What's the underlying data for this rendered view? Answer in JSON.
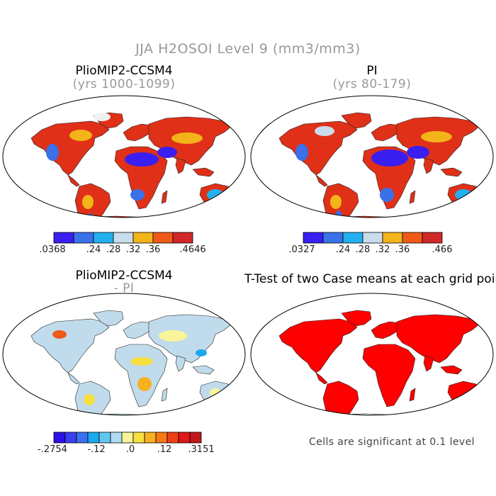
{
  "main_title": "JJA H2OSOI Level 9 (mm3/mm3)",
  "panels": {
    "top_left": {
      "title": "PlioMIP2-CCSM4",
      "subtitle": "(yrs 1000-1099)"
    },
    "top_right": {
      "title": "PI",
      "subtitle": "(yrs 80-179)"
    },
    "bottom_left": {
      "title": "PlioMIP2-CCSM4",
      "subtitle": "- PI"
    },
    "bottom_right": {
      "title": "T-Test of two Case means at each grid point"
    }
  },
  "colorbars": {
    "top_left": {
      "colors": [
        "#3a1ff0",
        "#3a70e8",
        "#22b0ee",
        "#c8dcec",
        "#f2b418",
        "#f05a18",
        "#d02828"
      ],
      "labels": [
        ".0368",
        ".24",
        ".28",
        ".32",
        ".36",
        ".4646"
      ]
    },
    "top_right": {
      "colors": [
        "#3a1ff0",
        "#3a70e8",
        "#22b0ee",
        "#c8dcec",
        "#f2b418",
        "#f05a18",
        "#d02828"
      ],
      "labels": [
        ".0327",
        ".24",
        ".28",
        ".32",
        ".36",
        ".466"
      ]
    },
    "bottom_left": {
      "colors": [
        "#2a10e8",
        "#3a40ee",
        "#3a70f0",
        "#1ca8f0",
        "#60c8f0",
        "#b0dcf0",
        "#f8f49a",
        "#f8e040",
        "#f8b020",
        "#f87818",
        "#f04018",
        "#e01818",
        "#c01818"
      ],
      "labels": [
        "-.2754",
        "-.12",
        ".0",
        ".12",
        ".3151"
      ]
    }
  },
  "footnote": "Cells are significant at 0.1 level",
  "map_colors": {
    "dry": "#3a1ff0",
    "wet": "#e03018",
    "diff_neutral": "#c0dcec",
    "significant": "#ff0000"
  }
}
